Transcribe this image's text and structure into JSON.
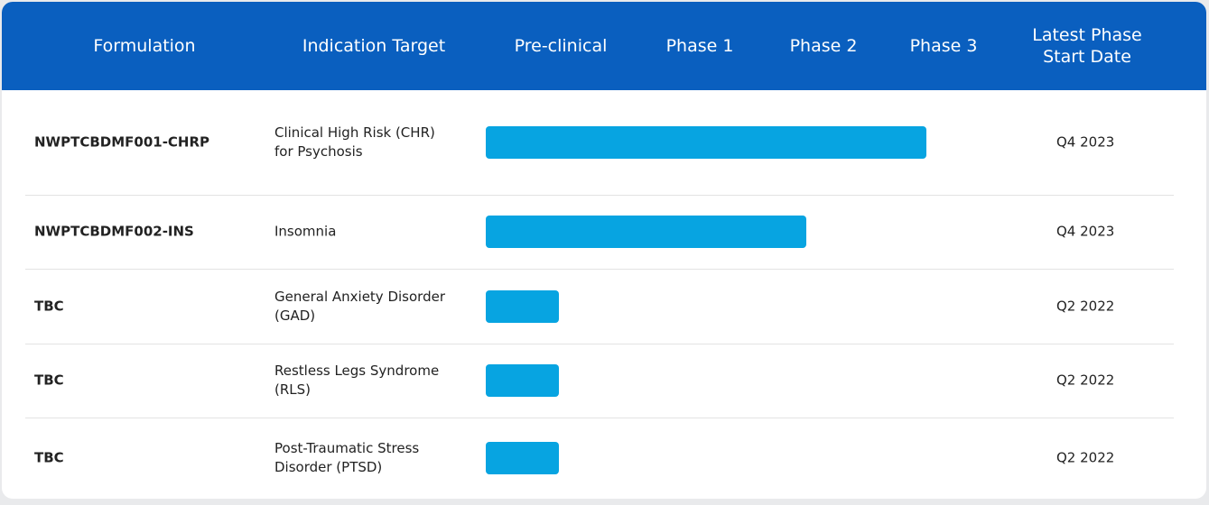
{
  "header": {
    "columns": [
      [
        "Formulation"
      ],
      [
        "Indication Target"
      ],
      [
        "Pre-clinical"
      ],
      [
        "Phase 1"
      ],
      [
        "Phase 2"
      ],
      [
        "Phase 3"
      ],
      [
        "Latest Phase",
        "Start Date"
      ]
    ]
  },
  "table": {
    "rows": [
      {
        "formulation": "NWPTCBDMF001-CHRP",
        "indication": [
          "Clinical High Risk (CHR)",
          "for Psychosis"
        ],
        "progress": 3.3,
        "date": "Q4 2023"
      },
      {
        "formulation": "NWPTCBDMF002-INS",
        "indication": [
          "Insomnia"
        ],
        "progress": 2.4,
        "date": "Q4 2023"
      },
      {
        "formulation": "TBC",
        "indication": [
          "General Anxiety Disorder",
          "(GAD)"
        ],
        "progress": 0.55,
        "date": "Q2 2022"
      },
      {
        "formulation": "TBC",
        "indication": [
          "Restless Legs Syndrome",
          "(RLS)"
        ],
        "progress": 0.55,
        "date": "Q2 2022"
      },
      {
        "formulation": "TBC",
        "indication": [
          "Post-Traumatic Stress",
          "Disorder (PTSD)"
        ],
        "progress": 0.55,
        "date": "Q2 2022"
      }
    ]
  }
}
